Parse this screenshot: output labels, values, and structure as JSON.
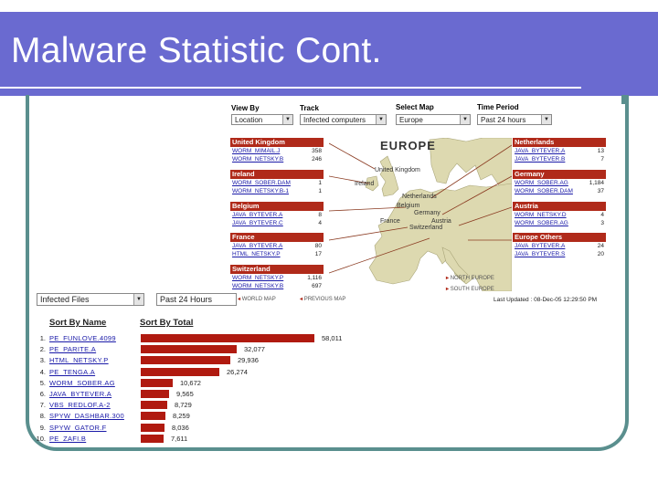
{
  "slide": {
    "title": "Malware Statistic Cont."
  },
  "controls": {
    "view_by": {
      "label": "View By",
      "value": "Location"
    },
    "track": {
      "label": "Track",
      "value": "Infected computers"
    },
    "select_map": {
      "label": "Select Map",
      "value": "Europe"
    },
    "time_period": {
      "label": "Time Period",
      "value": "Past 24 hours"
    },
    "list_type": {
      "value": "Infected Files"
    },
    "list_period": {
      "value": "Past 24 Hours"
    }
  },
  "map": {
    "title": "EUROPE",
    "labels": [
      "United Kingdom",
      "Ireland",
      "Netherlands",
      "Belgium",
      "Germany",
      "France",
      "Austria",
      "Switzerland"
    ],
    "links": {
      "north": "NORTH EUROPE",
      "south": "SOUTH EUROPE",
      "world": "WORLD MAP",
      "previous": "PREVIOUS MAP"
    },
    "last_updated": "Last Updated : 08-Dec-05 12:29:50 PM",
    "colors": {
      "header": "#b02a1a",
      "link": "#1a1aa8",
      "sea": "#ffffff",
      "land": "#ddd9b0"
    }
  },
  "countries": {
    "left": [
      {
        "name": "United Kingdom",
        "rows": [
          {
            "worm": "WORM_MIMAIL.J",
            "count": "358"
          },
          {
            "worm": "WORM_NETSKY.B",
            "count": "246"
          }
        ]
      },
      {
        "name": "Ireland",
        "rows": [
          {
            "worm": "WORM_SOBER.DAM",
            "count": "1"
          },
          {
            "worm": "WORM_NETSKY.B-1",
            "count": "1"
          }
        ]
      },
      {
        "name": "Belgium",
        "rows": [
          {
            "worm": "JAVA_BYTEVER.A",
            "count": "8"
          },
          {
            "worm": "JAVA_BYTEVER.C",
            "count": "4"
          }
        ]
      },
      {
        "name": "France",
        "rows": [
          {
            "worm": "JAVA_BYTEVER.A",
            "count": "80"
          },
          {
            "worm": "HTML_NETSKY.P",
            "count": "17"
          }
        ]
      },
      {
        "name": "Switzerland",
        "rows": [
          {
            "worm": "WORM_NETSKY.P",
            "count": "1,116"
          },
          {
            "worm": "WORM_NETSKY.B",
            "count": "697"
          }
        ]
      }
    ],
    "right": [
      {
        "name": "Netherlands",
        "rows": [
          {
            "worm": "JAVA_BYTEVER.A",
            "count": "13"
          },
          {
            "worm": "JAVA_BYTEVER.B",
            "count": "7"
          }
        ]
      },
      {
        "name": "Germany",
        "rows": [
          {
            "worm": "WORM_SOBER.AG",
            "count": "1,184"
          },
          {
            "worm": "WORM_SOBER.DAM",
            "count": "37"
          }
        ]
      },
      {
        "name": "Austria",
        "rows": [
          {
            "worm": "WORM_NETSKY.D",
            "count": "4"
          },
          {
            "worm": "WORM_SOBER.AG",
            "count": "3"
          }
        ]
      },
      {
        "name": "Europe Others",
        "rows": [
          {
            "worm": "JAVA_BYTEVER.A",
            "count": "24"
          },
          {
            "worm": "JAVA_BYTEVER.S",
            "count": "20"
          }
        ]
      }
    ]
  },
  "top_list": {
    "sort_by_name": "Sort By Name",
    "sort_by_total": "Sort By Total",
    "max": 58011,
    "bar_color": "#b01a10",
    "items": [
      {
        "rank": "1.",
        "name": "PE_FUNLOVE.4099",
        "value": 58011,
        "label": "58,011"
      },
      {
        "rank": "2.",
        "name": "PE_PARITE.A",
        "value": 32077,
        "label": "32,077"
      },
      {
        "rank": "3.",
        "name": "HTML_NETSKY.P",
        "value": 29936,
        "label": "29,936"
      },
      {
        "rank": "4.",
        "name": "PE_TENGA.A",
        "value": 26274,
        "label": "26,274"
      },
      {
        "rank": "5.",
        "name": "WORM_SOBER.AG",
        "value": 10672,
        "label": "10,672"
      },
      {
        "rank": "6.",
        "name": "JAVA_BYTEVER.A",
        "value": 9565,
        "label": "9,565"
      },
      {
        "rank": "7.",
        "name": "VBS_REDLOF.A-2",
        "value": 8729,
        "label": "8,729"
      },
      {
        "rank": "8.",
        "name": "SPYW_DASHBAR.300",
        "value": 8259,
        "label": "8,259"
      },
      {
        "rank": "9.",
        "name": "SPYW_GATOR.F",
        "value": 8036,
        "label": "8,036"
      },
      {
        "rank": "10.",
        "name": "PE_ZAFI.B",
        "value": 7611,
        "label": "7,611"
      }
    ]
  }
}
